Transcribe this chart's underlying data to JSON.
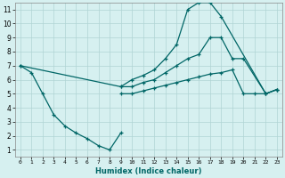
{
  "title": "",
  "xlabel": "Humidex (Indice chaleur)",
  "background_color": "#d6f0f0",
  "grid_color": "#b0d4d4",
  "line_color": "#006666",
  "xlim": [
    -0.5,
    23.5
  ],
  "ylim": [
    0.5,
    11.5
  ],
  "xticks": [
    0,
    1,
    2,
    3,
    4,
    5,
    6,
    7,
    8,
    9,
    10,
    11,
    12,
    13,
    14,
    15,
    16,
    17,
    18,
    19,
    20,
    21,
    22,
    23
  ],
  "yticks": [
    1,
    2,
    3,
    4,
    5,
    6,
    7,
    8,
    9,
    10,
    11
  ],
  "line1_x": [
    0,
    1,
    2,
    3,
    4,
    5,
    6,
    7,
    8,
    9
  ],
  "line1_y": [
    7,
    6.5,
    5,
    3.5,
    2.7,
    2.2,
    1.8,
    1.3,
    1.0,
    2.2
  ],
  "line2_x": [
    0,
    9,
    10,
    11,
    12,
    13,
    14,
    15,
    16,
    17,
    18,
    22,
    23
  ],
  "line2_y": [
    7,
    5.5,
    6.0,
    6.3,
    6.7,
    7.5,
    8.5,
    11.0,
    11.5,
    11.5,
    10.5,
    5.0,
    5.3
  ],
  "line3_x": [
    9,
    10,
    11,
    12,
    13,
    14,
    15,
    16,
    17,
    18,
    19,
    20,
    22,
    23
  ],
  "line3_y": [
    5.5,
    5.5,
    5.8,
    6.0,
    6.5,
    7.0,
    7.5,
    7.8,
    9.0,
    9.0,
    7.5,
    7.5,
    5.0,
    5.3
  ],
  "line4_x": [
    9,
    10,
    11,
    12,
    13,
    14,
    15,
    16,
    17,
    18,
    19,
    20,
    21,
    22,
    23
  ],
  "line4_y": [
    5.0,
    5.0,
    5.2,
    5.4,
    5.6,
    5.8,
    6.0,
    6.2,
    6.4,
    6.5,
    6.7,
    5.0,
    5.0,
    5.0,
    5.3
  ]
}
